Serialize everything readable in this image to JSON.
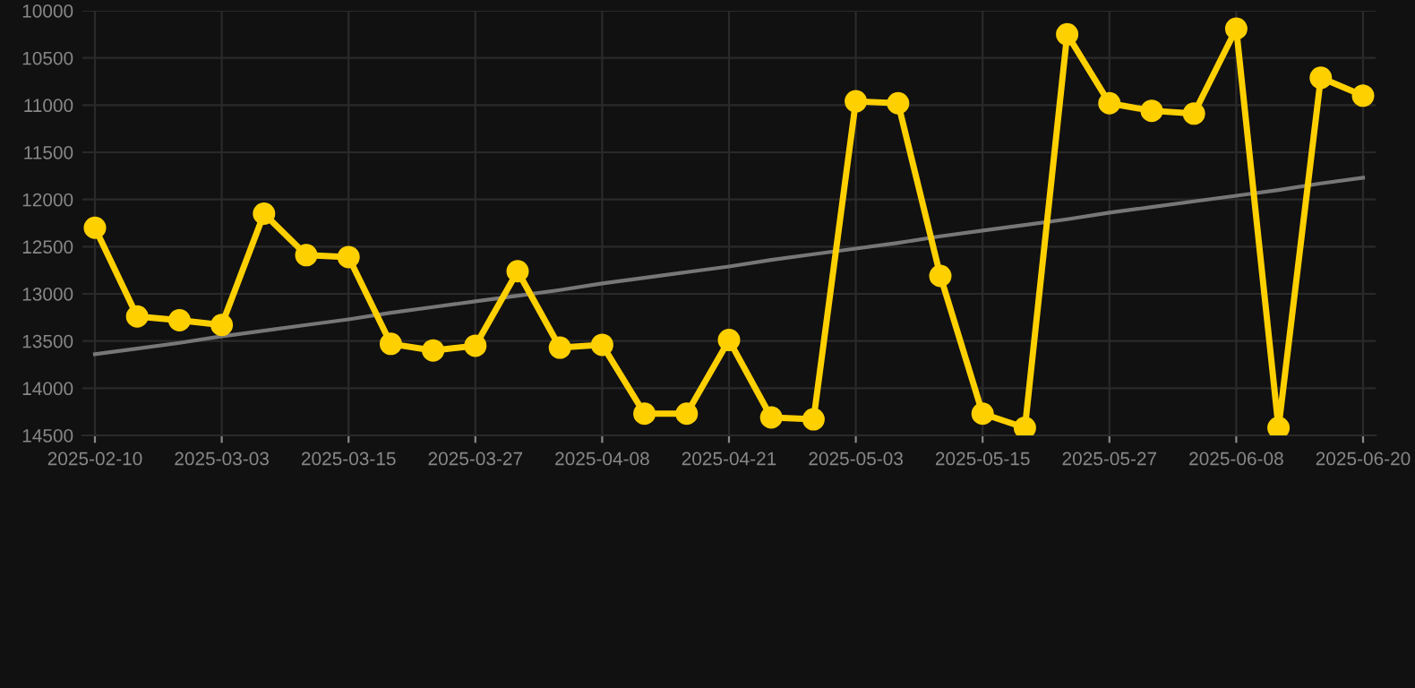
{
  "chart_data": {
    "type": "line",
    "categories": [
      "2025-02-10",
      null,
      null,
      "2025-03-03",
      null,
      null,
      "2025-03-15",
      null,
      null,
      "2025-03-27",
      null,
      null,
      "2025-04-08",
      null,
      null,
      "2025-04-21",
      null,
      null,
      "2025-05-03",
      null,
      null,
      "2025-05-15",
      null,
      null,
      "2025-05-27",
      null,
      null,
      "2025-06-08",
      null,
      null,
      "2025-06-20"
    ],
    "series": [
      {
        "color": "#ffd000",
        "marker": "circle",
        "values": [
          12300,
          13240,
          13280,
          13330,
          12150,
          12590,
          12610,
          13530,
          13600,
          13550,
          12760,
          13570,
          13540,
          14270,
          14270,
          13490,
          14310,
          14330,
          10960,
          10980,
          12810,
          14270,
          14420,
          10250,
          10980,
          11060,
          11090,
          10190,
          14420,
          10710,
          10900
        ]
      },
      {
        "type": "line",
        "color": "#777777",
        "marker": "none",
        "values": [
          13640,
          13580,
          13520,
          13450,
          13390,
          13330,
          13270,
          13200,
          13140,
          13080,
          13020,
          12960,
          12890,
          12830,
          12770,
          12710,
          12640,
          12580,
          12520,
          12460,
          12390,
          12330,
          12270,
          12210,
          12140,
          12080,
          12020,
          11960,
          11900,
          11830,
          11770
        ]
      }
    ],
    "ylim": [
      14500,
      10000
    ],
    "yticks": [
      10000,
      10500,
      11000,
      11500,
      12000,
      12500,
      13000,
      13500,
      14000,
      14500
    ],
    "grid": true,
    "line_style": "solid"
  }
}
